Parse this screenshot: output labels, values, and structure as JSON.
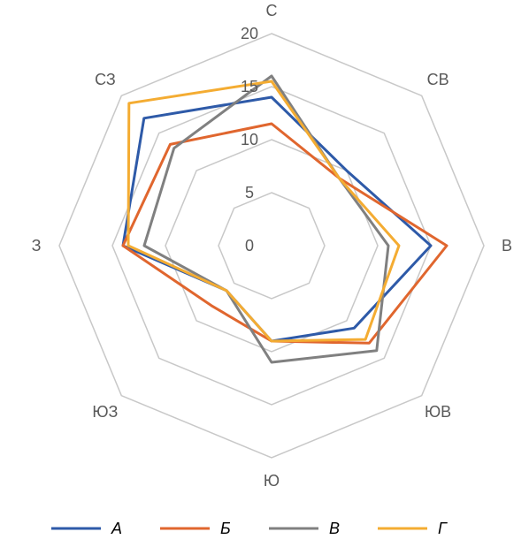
{
  "chart_data": {
    "type": "radar",
    "title": "",
    "categories": [
      "С",
      "СВ",
      "В",
      "ЮВ",
      "Ю",
      "ЮЗ",
      "З",
      "СЗ"
    ],
    "r_ticks": [
      0,
      5,
      10,
      15,
      20
    ],
    "r_range": [
      0,
      20
    ],
    "grid": true,
    "grid_color": "#c8c8c8",
    "legend_position": "bottom",
    "series": [
      {
        "name": "А",
        "color": "#2e5aa8",
        "values": [
          14,
          10,
          15,
          11,
          9,
          6,
          14,
          17
        ]
      },
      {
        "name": "Б",
        "color": "#e0662e",
        "values": [
          11.5,
          9,
          16.5,
          13,
          9,
          8,
          14,
          13.5
        ]
      },
      {
        "name": "В",
        "color": "#808080",
        "values": [
          16,
          9,
          11,
          14,
          11,
          6,
          12,
          13
        ]
      },
      {
        "name": "Г",
        "color": "#f4ac32",
        "values": [
          15.5,
          9,
          12,
          12.5,
          9,
          6,
          13.5,
          19
        ]
      }
    ]
  }
}
